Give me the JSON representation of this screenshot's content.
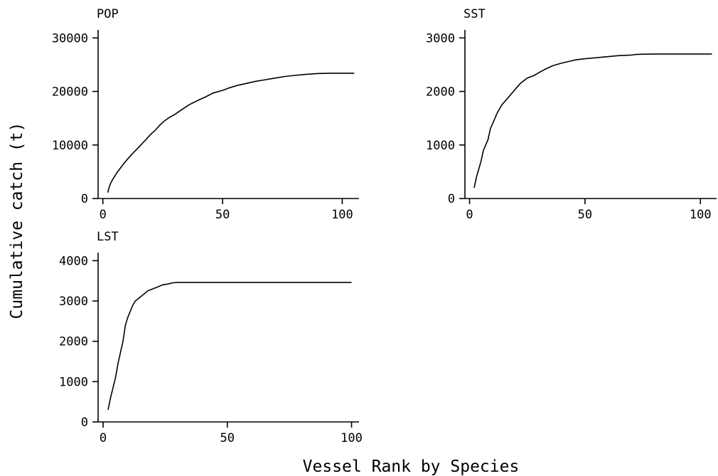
{
  "figure": {
    "xlabel": "Vessel Rank by Species",
    "ylabel": "Cumulative catch (t)"
  },
  "chart_data": [
    {
      "type": "line",
      "title": "POP",
      "xlim": [
        -2,
        107
      ],
      "ylim": [
        0,
        31500
      ],
      "xticks": [
        0,
        50,
        100
      ],
      "yticks": [
        0,
        10000,
        20000,
        30000
      ],
      "x": [
        2,
        3,
        4,
        6,
        8,
        10,
        12,
        15,
        18,
        20,
        22,
        24,
        26,
        28,
        30,
        33,
        36,
        40,
        43,
        46,
        50,
        53,
        56,
        60,
        64,
        68,
        72,
        76,
        80,
        85,
        90,
        95,
        100,
        105
      ],
      "y": [
        1100,
        2600,
        3500,
        4900,
        6100,
        7200,
        8200,
        9600,
        11000,
        12000,
        12800,
        13800,
        14600,
        15200,
        15700,
        16600,
        17500,
        18400,
        19000,
        19700,
        20200,
        20700,
        21100,
        21500,
        21900,
        22200,
        22500,
        22800,
        23000,
        23200,
        23350,
        23400,
        23400,
        23400
      ]
    },
    {
      "type": "line",
      "title": "SST",
      "xlim": [
        -2,
        107
      ],
      "ylim": [
        0,
        3150
      ],
      "xticks": [
        0,
        50,
        100
      ],
      "yticks": [
        0,
        1000,
        2000,
        3000
      ],
      "x": [
        2,
        3,
        4,
        5,
        6,
        8,
        9,
        10,
        12,
        14,
        16,
        18,
        20,
        22,
        25,
        28,
        30,
        33,
        36,
        40,
        43,
        46,
        50,
        55,
        60,
        65,
        70,
        72,
        75,
        80,
        90,
        100,
        105
      ],
      "y": [
        200,
        400,
        550,
        700,
        900,
        1100,
        1300,
        1400,
        1600,
        1750,
        1850,
        1950,
        2050,
        2150,
        2250,
        2300,
        2350,
        2420,
        2480,
        2530,
        2560,
        2590,
        2610,
        2630,
        2650,
        2670,
        2680,
        2690,
        2695,
        2700,
        2700,
        2700,
        2700
      ]
    },
    {
      "type": "line",
      "title": "LST",
      "xlim": [
        -2,
        103
      ],
      "ylim": [
        0,
        4200
      ],
      "xticks": [
        0,
        50,
        100
      ],
      "yticks": [
        0,
        1000,
        2000,
        3000,
        4000
      ],
      "x": [
        2,
        3,
        4,
        5,
        6,
        8,
        9,
        10,
        11,
        12,
        13,
        14,
        16,
        17,
        18,
        20,
        22,
        24,
        26,
        28,
        30,
        40,
        50,
        60,
        80,
        100
      ],
      "y": [
        300,
        600,
        850,
        1100,
        1450,
        2000,
        2400,
        2600,
        2750,
        2900,
        3000,
        3050,
        3150,
        3200,
        3250,
        3300,
        3350,
        3400,
        3420,
        3450,
        3460,
        3460,
        3460,
        3460,
        3460,
        3460
      ]
    }
  ]
}
